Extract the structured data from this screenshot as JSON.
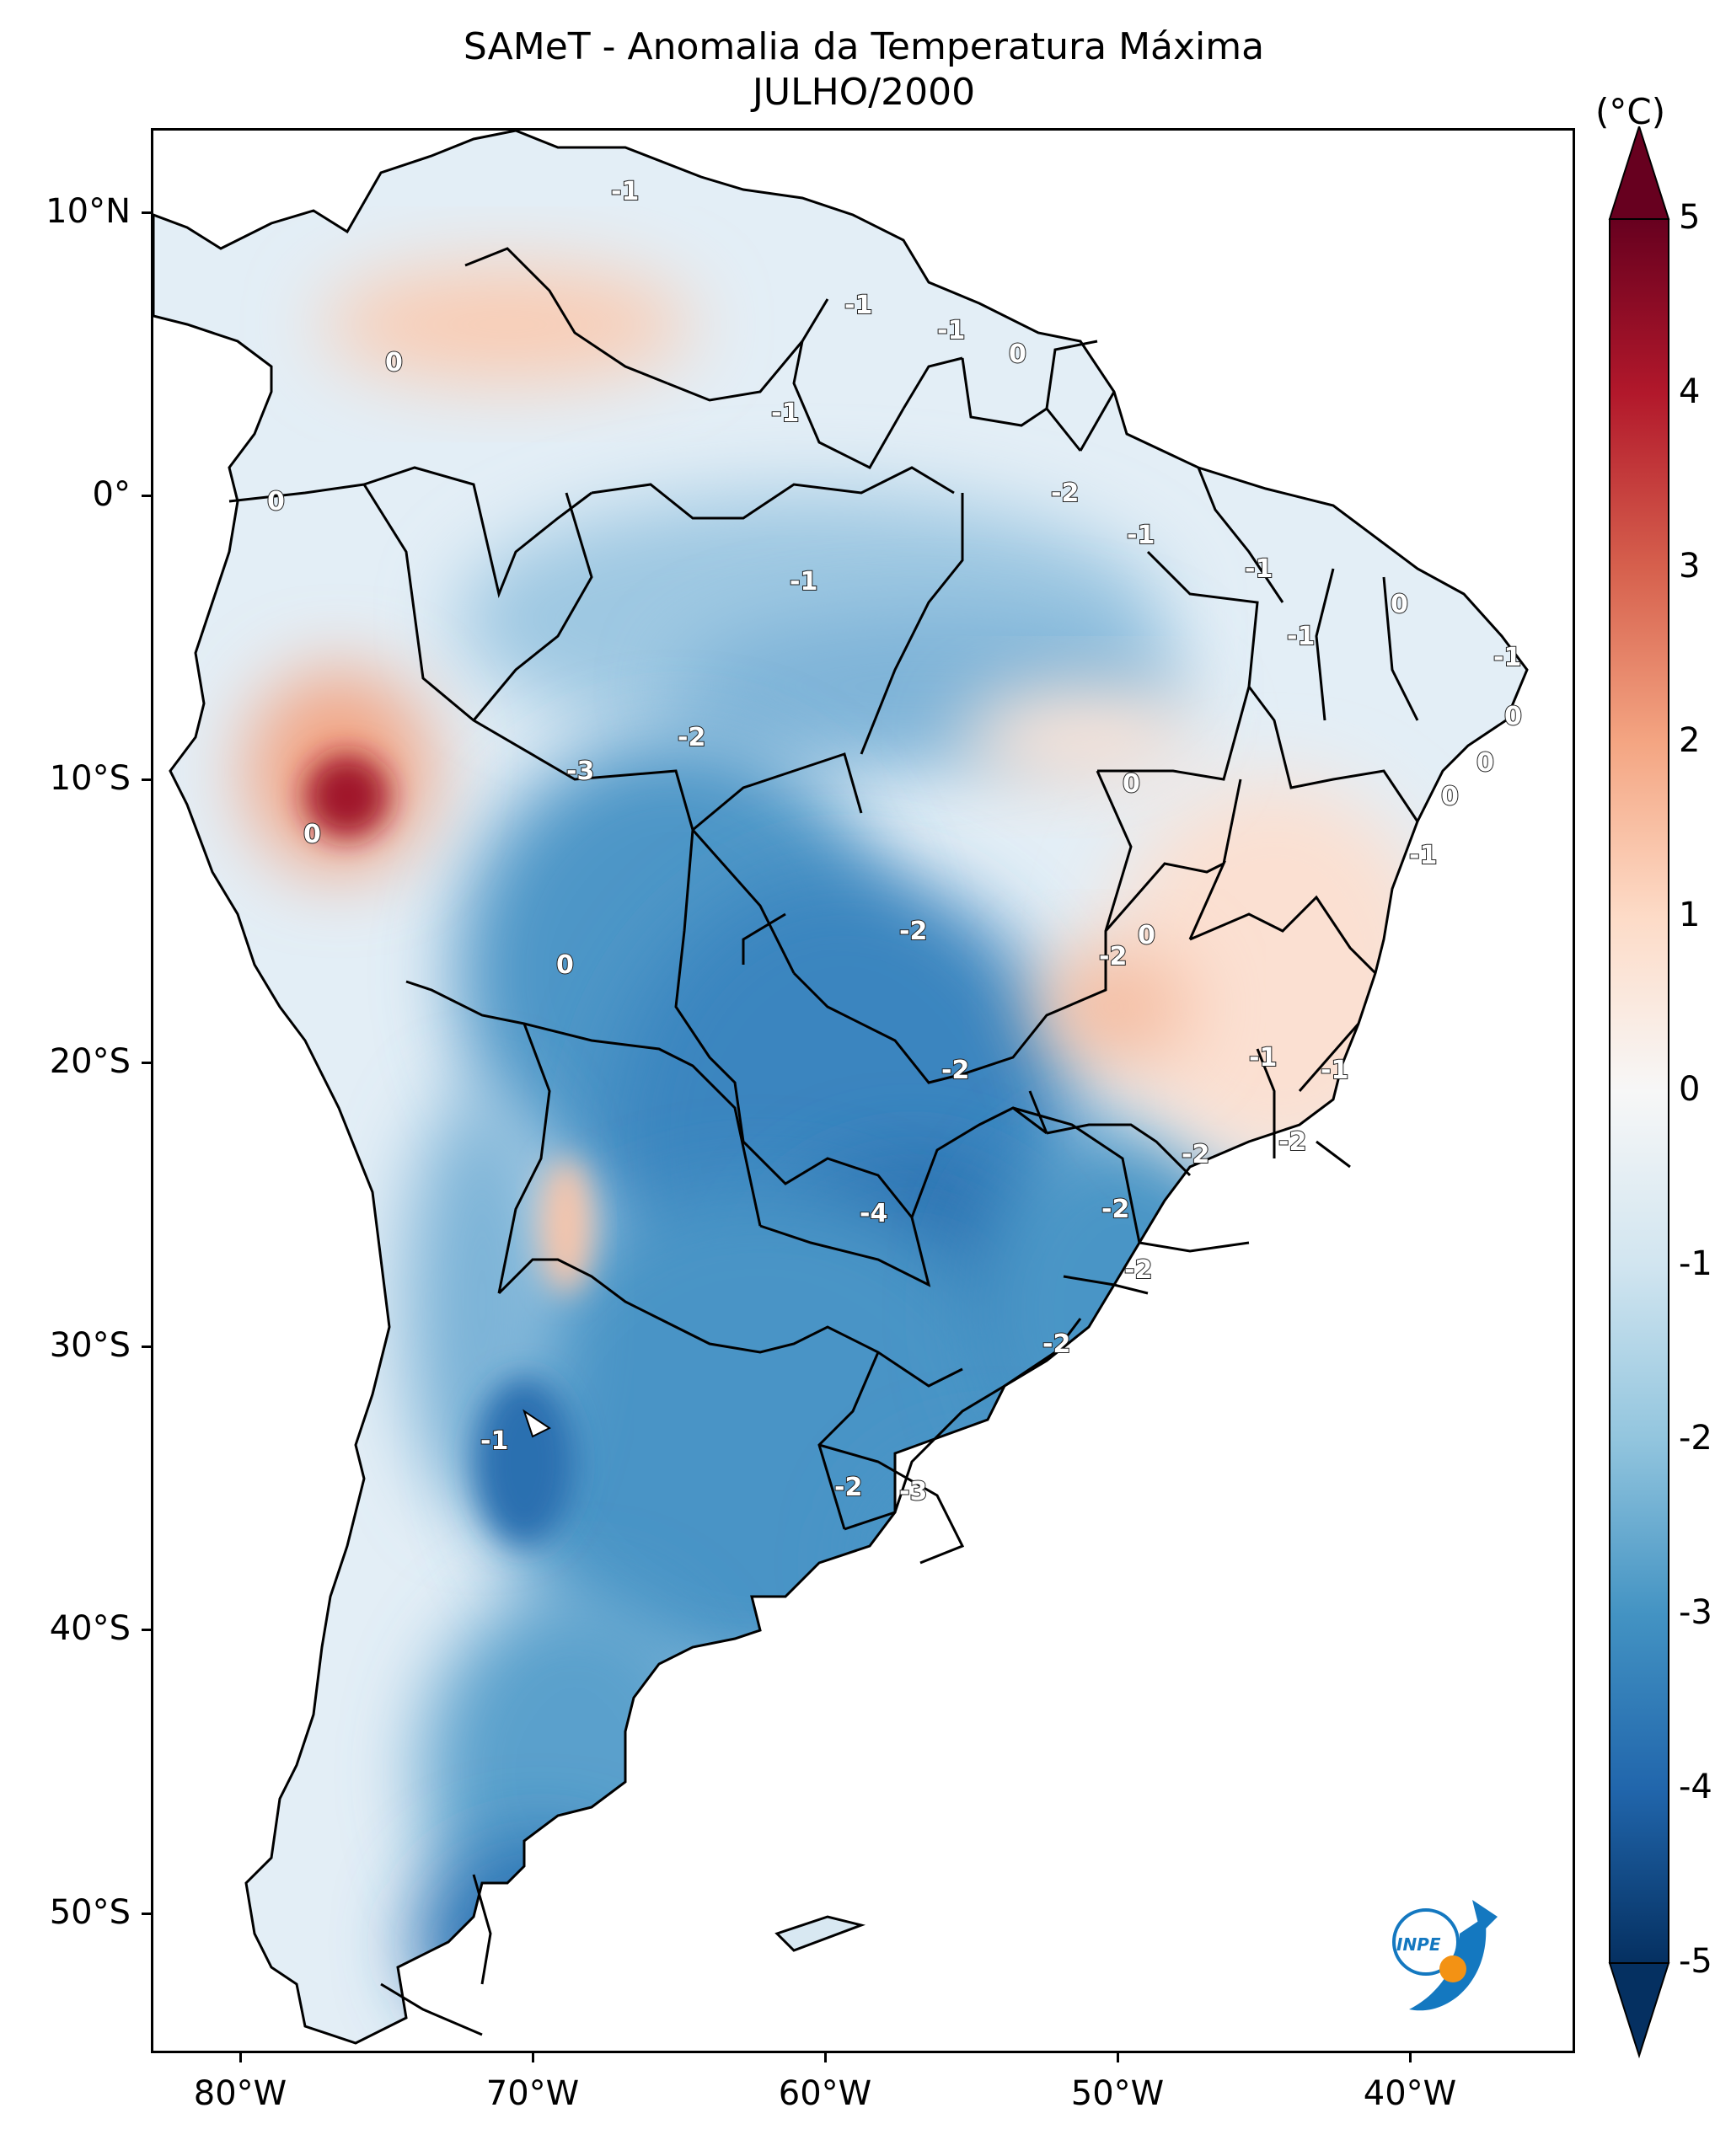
{
  "title": "SAMeT - Anomalia da Temperatura Máxima",
  "subtitle": "JULHO/2000",
  "map": {
    "lat_ticks": [
      "10°N",
      "0°",
      "10°S",
      "20°S",
      "30°S",
      "40°S",
      "50°S"
    ],
    "lon_ticks": [
      "80°W",
      "70°W",
      "60°W",
      "50°W",
      "40°W"
    ],
    "contour_labels": [
      "-1",
      "-1",
      "-1",
      "0",
      "0",
      "-1",
      "0",
      "-2",
      "-1",
      "-1",
      "0",
      "-1",
      "-1",
      "-1",
      "0",
      "0",
      "0",
      "0",
      "-1",
      "-2",
      "-3",
      "0",
      "-2",
      "-2",
      "0",
      "-2",
      "0",
      "-1",
      "-1",
      "-2",
      "-2",
      "-4",
      "-2",
      "-2",
      "-2",
      "-1",
      "-2",
      "-3"
    ],
    "colorscale": [
      "#053061",
      "#2166ac",
      "#4393c3",
      "#92c5de",
      "#d1e5f0",
      "#f7f7f7",
      "#fddbc7",
      "#f4a582",
      "#d6604d",
      "#b2182b",
      "#67001f"
    ]
  },
  "colorbar": {
    "unit": "(°C)",
    "ticks": [
      "5",
      "4",
      "3",
      "2",
      "1",
      "0",
      "-1",
      "-2",
      "-3",
      "-4",
      "-5"
    ],
    "range": [
      -5,
      5
    ]
  },
  "logo": {
    "text": "INPE"
  }
}
